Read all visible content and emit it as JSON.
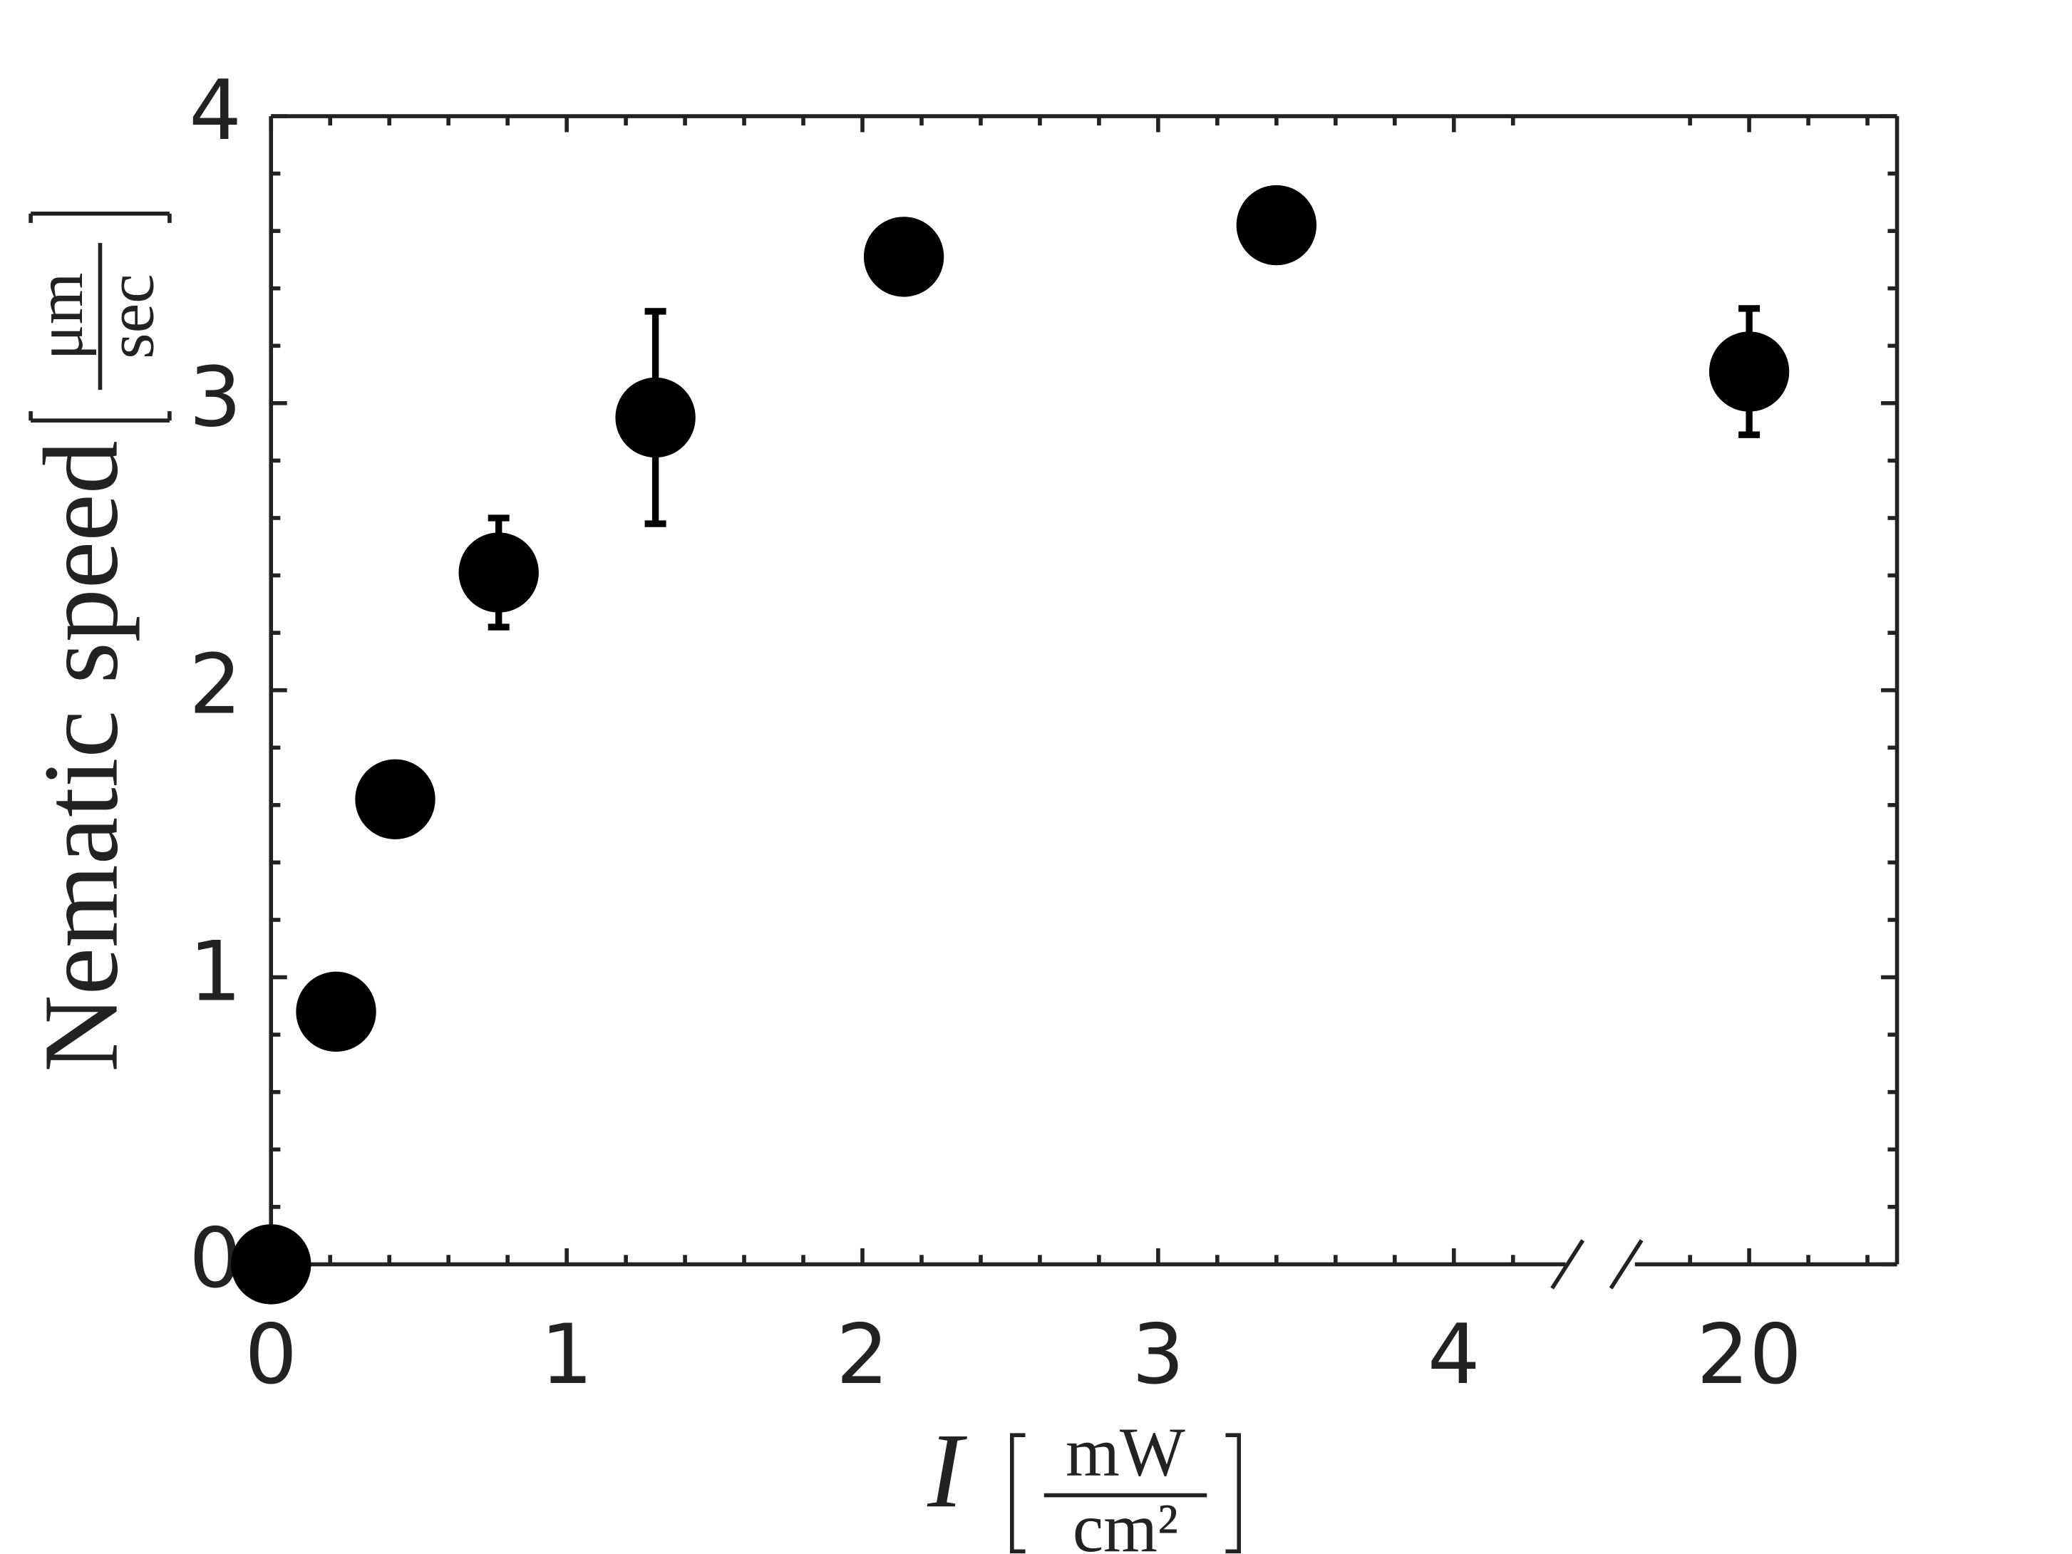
{
  "chart_data": {
    "type": "scatter",
    "x": [
      0,
      0.22,
      0.42,
      0.77,
      1.3,
      2.14,
      3.4,
      20
    ],
    "values": [
      0,
      0.88,
      1.62,
      2.41,
      2.95,
      3.51,
      3.62,
      3.11
    ],
    "errors": [
      null,
      null,
      null,
      0.19,
      0.37,
      null,
      null,
      0.22
    ],
    "color": "#000000",
    "xlim": [
      0,
      20.5
    ],
    "x_break": [
      4.4,
      19.6
    ],
    "xticks": [
      0,
      1,
      2,
      3,
      4,
      20
    ],
    "xminorticks": [
      0.2,
      0.4,
      0.6,
      0.8,
      1.2,
      1.4,
      1.6,
      1.8,
      2.2,
      2.4,
      2.6,
      2.8,
      3.2,
      3.4,
      3.6,
      3.8,
      4.2,
      19.8,
      20.2,
      20.4
    ],
    "ylim": [
      0,
      4
    ],
    "yticks": [
      0,
      1,
      2,
      3,
      4
    ],
    "yminorticks": [
      0.2,
      0.4,
      0.6,
      0.8,
      1.2,
      1.4,
      1.6,
      1.8,
      2.2,
      2.4,
      2.6,
      2.8,
      3.2,
      3.4,
      3.6,
      3.8
    ],
    "xlabel": {
      "text": "I",
      "unit_num": "mW",
      "unit_den": "cm²"
    },
    "ylabel": {
      "text": "Nematic speed",
      "unit_num": "μm",
      "unit_den": "sec"
    },
    "grid": false
  }
}
